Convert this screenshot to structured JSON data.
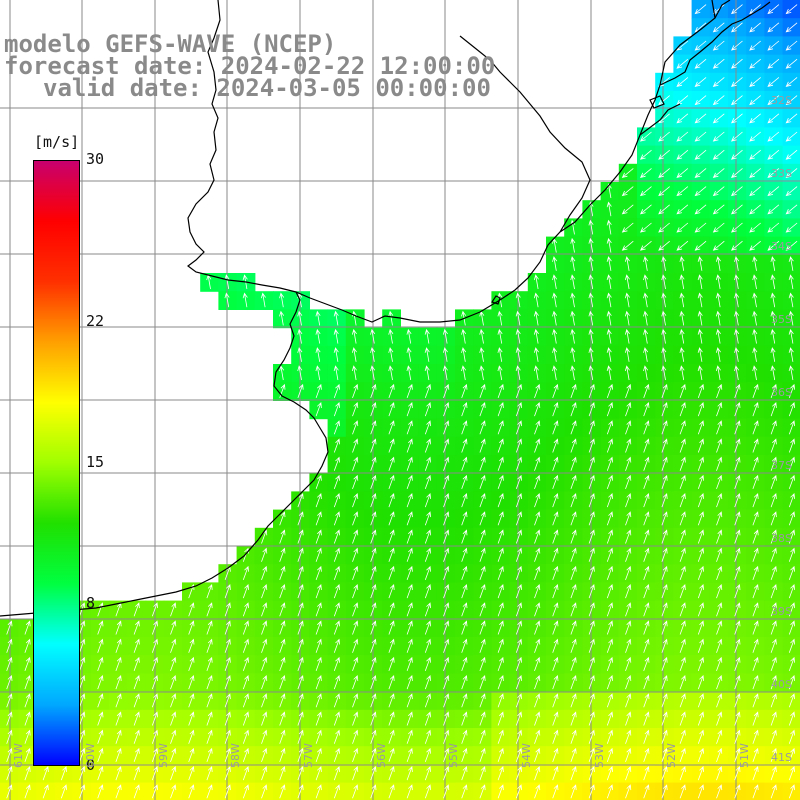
{
  "title": {
    "line1": "modelo GEFS-WAVE (NCEP)",
    "line2": "forecast date: 2024-02-22 12:00:00",
    "line3": "valid date: 2024-03-05 00:00:00"
  },
  "colorbar": {
    "unit": "[m/s]",
    "min": 0,
    "max": 30,
    "ticks": [
      {
        "value": 30,
        "label": "30"
      },
      {
        "value": 22,
        "label": "22"
      },
      {
        "value": 15,
        "label": "15"
      },
      {
        "value": 8,
        "label": "8"
      },
      {
        "value": 0,
        "label": "0"
      }
    ],
    "colors": [
      "#0000ff",
      "#00a8ff",
      "#00ffff",
      "#00ff40",
      "#20e000",
      "#a0ff00",
      "#ffff00",
      "#ffa000",
      "#ff3000",
      "#ff0000",
      "#c8006e"
    ]
  },
  "latitude_labels": [
    "32S",
    "33S",
    "34S",
    "35S",
    "36S",
    "37S",
    "38S",
    "39S",
    "40S",
    "41S"
  ],
  "longitude_labels": [
    "61W",
    "60W",
    "59W",
    "58W",
    "57W",
    "56W",
    "55W",
    "54W",
    "53W",
    "52W",
    "51W"
  ],
  "theme": {
    "coast_color": "#000000",
    "grid_color": "#8a8a8a",
    "arrow_color": "#ffffff",
    "label_gray": "#8a8a8a"
  }
}
